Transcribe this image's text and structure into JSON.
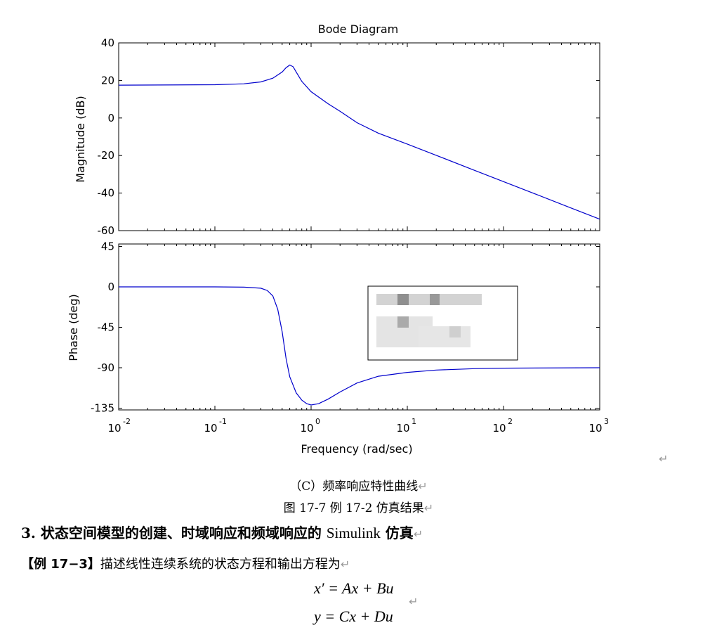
{
  "chart_data": {
    "type": "line",
    "title": "Bode Diagram",
    "xlabel": "Frequency  (rad/sec)",
    "xscale": "log",
    "xlim": [
      0.01,
      1000
    ],
    "x_ticks": [
      "10",
      "10",
      "10",
      "10",
      "10",
      "10"
    ],
    "x_tick_exponents": [
      "-2",
      "-1",
      "0",
      "1",
      "2",
      "3"
    ],
    "color": "#0000cc",
    "panels": [
      {
        "name": "magnitude",
        "ylabel": "Magnitude (dB)",
        "ylim": [
          -60,
          40
        ],
        "yticks": [
          "40",
          "20",
          "0",
          "-20",
          "-40",
          "-60"
        ],
        "x": [
          0.01,
          0.1,
          0.2,
          0.3,
          0.4,
          0.5,
          0.55,
          0.6,
          0.65,
          0.7,
          0.8,
          1,
          1.5,
          2,
          3,
          5,
          10,
          20,
          50,
          100,
          200,
          500,
          1000
        ],
        "y": [
          17.5,
          17.7,
          18.2,
          19.2,
          21.2,
          24.5,
          26.8,
          28.2,
          27.3,
          24.5,
          19.5,
          14.0,
          7.6,
          3.6,
          -2.5,
          -8.1,
          -13.9,
          -19.9,
          -27.9,
          -33.9,
          -39.9,
          -47.9,
          -53.9
        ]
      },
      {
        "name": "phase",
        "ylabel": "Phase (deg)",
        "ylim": [
          -140,
          47
        ],
        "yticks": [
          "45",
          "0",
          "-45",
          "-90",
          "-135"
        ],
        "x": [
          0.01,
          0.1,
          0.2,
          0.3,
          0.35,
          0.4,
          0.45,
          0.5,
          0.55,
          0.6,
          0.7,
          0.8,
          0.9,
          1,
          1.2,
          1.5,
          2,
          3,
          5,
          10,
          20,
          50,
          100,
          1000
        ],
        "y": [
          0,
          0,
          -0.3,
          -1.5,
          -4,
          -10,
          -25,
          -50,
          -80,
          -100,
          -118,
          -126,
          -130,
          -131.5,
          -130,
          -125,
          -117,
          -107,
          -99.5,
          -95.2,
          -92.6,
          -91,
          -90.5,
          -90
        ]
      }
    ]
  },
  "captions": {
    "subfigure": "（C）频率响应特性曲线",
    "figure": "图 17-7    例 17-2 仿真结果"
  },
  "section": {
    "heading_prefix": "3.  状态空间模型的创建、时域响应和频域响应的 ",
    "heading_latin": "Simulink",
    "heading_suffix": " 仿真"
  },
  "example": {
    "label": "【例 17−3】",
    "text": "描述线性连续系统的状态方程和输出方程为"
  },
  "equations": {
    "eq1": "x′ = Ax + Bu",
    "eq2": "y = Cx + Du"
  },
  "marks": {
    "return": "↵"
  }
}
